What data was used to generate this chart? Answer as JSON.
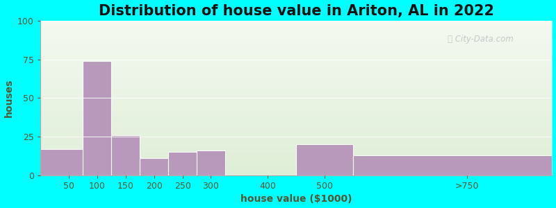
{
  "title": "Distribution of house value in Ariton, AL in 2022",
  "xlabel": "house value ($1000)",
  "ylabel": "houses",
  "background_outer": "#00FFFF",
  "bar_color": "#b899bb",
  "categories": [
    "50",
    "100",
    "150",
    "200",
    "250",
    "300",
    "400",
    "500",
    ">750"
  ],
  "values": [
    17,
    74,
    26,
    11,
    15,
    16,
    0,
    20,
    13
  ],
  "ylim": [
    0,
    100
  ],
  "yticks": [
    0,
    25,
    50,
    75,
    100
  ],
  "title_fontsize": 15,
  "axis_label_fontsize": 10,
  "tick_fontsize": 9,
  "title_color": "#111111",
  "label_color": "#555533",
  "tick_color": "#555533",
  "tick_positions": [
    50,
    100,
    150,
    200,
    250,
    300,
    400,
    500,
    750
  ],
  "bin_edges": [
    0,
    75,
    125,
    175,
    225,
    275,
    325,
    450,
    550,
    900
  ],
  "xlim": [
    0,
    900
  ]
}
